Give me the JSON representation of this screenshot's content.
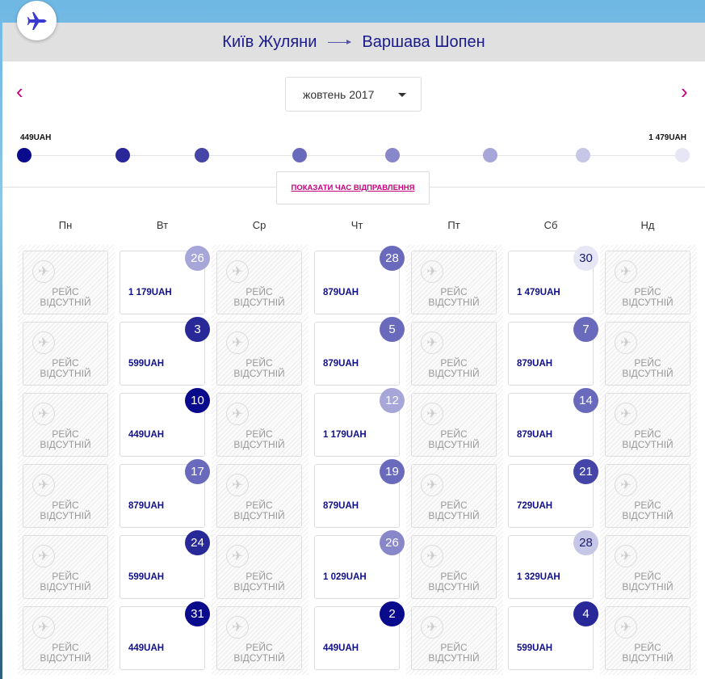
{
  "header": {
    "from": "Київ Жуляни",
    "to": "Варшава Шопен"
  },
  "month_select": {
    "value": "жовтень 2017"
  },
  "price_scale": {
    "min_label": "449UAH",
    "max_label": "1 479UAH",
    "levels": [
      449,
      599,
      729,
      879,
      1029,
      1179,
      1329,
      1479
    ],
    "colors": [
      "#0a0a8c",
      "#282898",
      "#4545a8",
      "#6a6abd",
      "#8787c9",
      "#a6a6d9",
      "#c6c6e6",
      "#e6e6f5"
    ]
  },
  "show_times": "ПОКАЗАТИ ЧАС ВІДПРАВЛЕННЯ",
  "weekdays": [
    "Пн",
    "Вт",
    "Ср",
    "Чт",
    "Пт",
    "Сб",
    "Нд"
  ],
  "unavailable_label": [
    "РЕЙС",
    "ВІДСУТНІЙ"
  ],
  "flights": [
    {
      "col": 1,
      "row": 0,
      "day": "26",
      "price": "1 179UAH",
      "level": 5
    },
    {
      "col": 3,
      "row": 0,
      "day": "28",
      "price": "879UAH",
      "level": 3
    },
    {
      "col": 5,
      "row": 0,
      "day": "30",
      "price": "1 479UAH",
      "level": 7
    },
    {
      "col": 1,
      "row": 1,
      "day": "3",
      "price": "599UAH",
      "level": 1
    },
    {
      "col": 3,
      "row": 1,
      "day": "5",
      "price": "879UAH",
      "level": 3
    },
    {
      "col": 5,
      "row": 1,
      "day": "7",
      "price": "879UAH",
      "level": 3
    },
    {
      "col": 1,
      "row": 2,
      "day": "10",
      "price": "449UAH",
      "level": 0
    },
    {
      "col": 3,
      "row": 2,
      "day": "12",
      "price": "1 179UAH",
      "level": 5
    },
    {
      "col": 5,
      "row": 2,
      "day": "14",
      "price": "879UAH",
      "level": 3
    },
    {
      "col": 1,
      "row": 3,
      "day": "17",
      "price": "879UAH",
      "level": 3
    },
    {
      "col": 3,
      "row": 3,
      "day": "19",
      "price": "879UAH",
      "level": 3
    },
    {
      "col": 5,
      "row": 3,
      "day": "21",
      "price": "729UAH",
      "level": 2
    },
    {
      "col": 1,
      "row": 4,
      "day": "24",
      "price": "599UAH",
      "level": 1
    },
    {
      "col": 3,
      "row": 4,
      "day": "26",
      "price": "1 029UAH",
      "level": 4
    },
    {
      "col": 5,
      "row": 4,
      "day": "28",
      "price": "1 329UAH",
      "level": 6
    },
    {
      "col": 1,
      "row": 5,
      "day": "31",
      "price": "449UAH",
      "level": 0
    },
    {
      "col": 3,
      "row": 5,
      "day": "2",
      "price": "449UAH",
      "level": 0
    },
    {
      "col": 5,
      "row": 5,
      "day": "4",
      "price": "599UAH",
      "level": 1
    }
  ]
}
